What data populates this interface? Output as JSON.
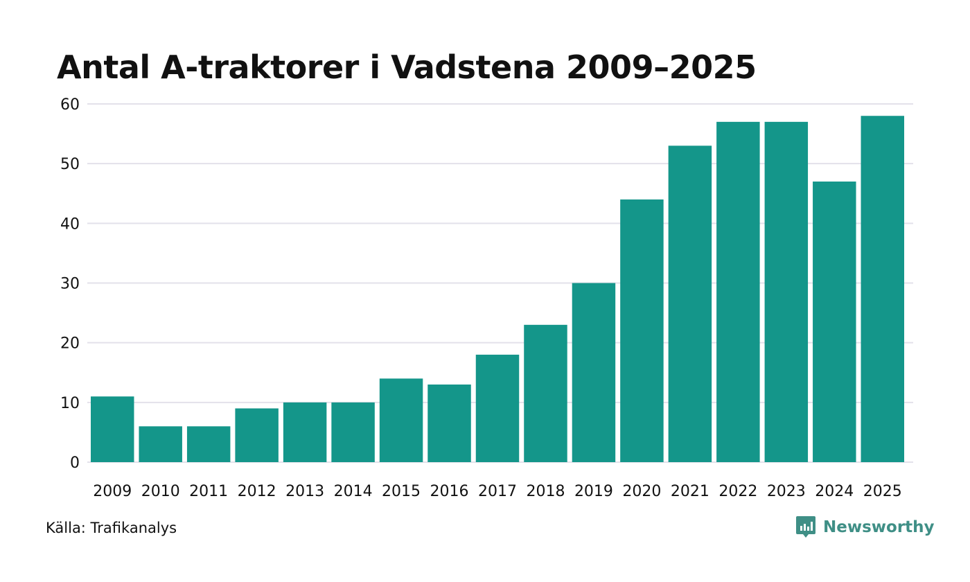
{
  "chart_data": {
    "type": "bar",
    "title": "Antal A-traktorer i Vadstena 2009–2025",
    "xlabel": "",
    "ylabel": "",
    "categories": [
      "2009",
      "2010",
      "2011",
      "2012",
      "2013",
      "2014",
      "2015",
      "2016",
      "2017",
      "2018",
      "2019",
      "2020",
      "2021",
      "2022",
      "2023",
      "2024",
      "2025"
    ],
    "values": [
      11,
      6,
      6,
      9,
      10,
      10,
      14,
      13,
      18,
      23,
      30,
      44,
      53,
      57,
      57,
      47,
      58
    ],
    "ylim": [
      0,
      60
    ],
    "yticks": [
      0,
      10,
      20,
      30,
      40,
      50,
      60
    ],
    "grid": true,
    "legend": "none"
  },
  "source": "Källa: Trafikanalys",
  "brand": {
    "name": "Newsworthy",
    "icon": "newsworthy-logo-icon"
  },
  "colors": {
    "bar": "#14968a",
    "grid": "#e3e1ea",
    "text": "#111111",
    "brand": "#3f8f86"
  }
}
